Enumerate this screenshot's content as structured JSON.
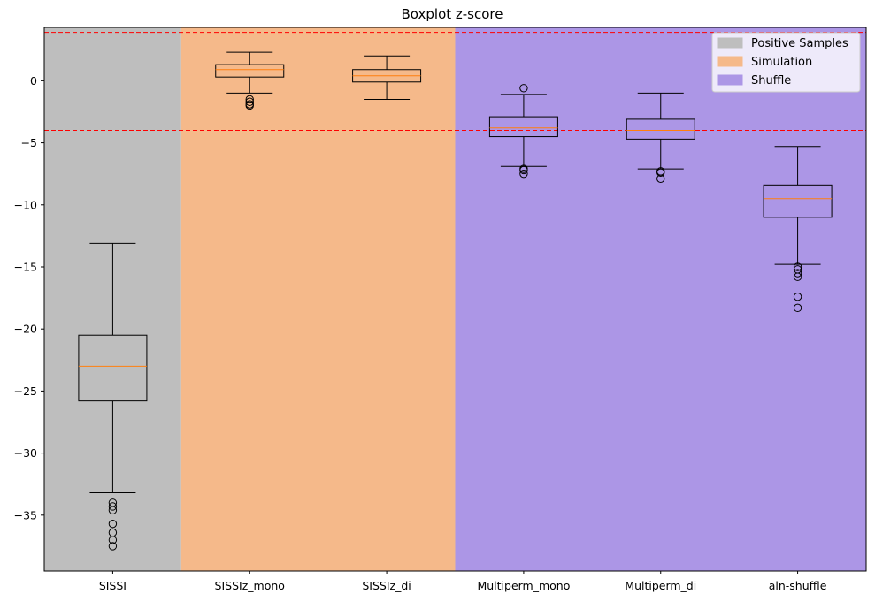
{
  "chart_data": {
    "type": "boxplot",
    "title": "Boxplot z-score",
    "xlabel": "",
    "ylabel": "",
    "ylim": [
      -39.5,
      4.3
    ],
    "yticks": [
      0,
      -5,
      -10,
      -15,
      -20,
      -25,
      -30,
      -35
    ],
    "categories": [
      "SISSI",
      "SISSIz_mono",
      "SISSIz_di",
      "Multiperm_mono",
      "Multiperm_di",
      "aln-shuffle"
    ],
    "reference_lines": [
      3.9,
      -4.0
    ],
    "reference_line_color": "#ff0000",
    "groups": [
      {
        "name": "Positive Samples",
        "start": 0,
        "end": 1,
        "color": "#bebebe"
      },
      {
        "name": "Simulation",
        "start": 1,
        "end": 3,
        "color": "#f5b98a"
      },
      {
        "name": "Shuffle",
        "start": 3,
        "end": 6,
        "color": "#ac96e6"
      }
    ],
    "legend_position": "top-right",
    "median_color": "#ff7f0e",
    "boxes": [
      {
        "label": "SISSI",
        "whisker_low": -33.2,
        "q1": -25.8,
        "median": -23.0,
        "q3": -20.5,
        "whisker_high": -13.1,
        "outliers": [
          -34.0,
          -34.3,
          -34.6,
          -35.7,
          -36.4,
          -37.0,
          -37.5
        ]
      },
      {
        "label": "SISSIz_mono",
        "whisker_low": -1.0,
        "q1": 0.3,
        "median": 0.9,
        "q3": 1.3,
        "whisker_high": 2.3,
        "outliers": [
          -1.5,
          -1.7,
          -1.9,
          -2.0
        ]
      },
      {
        "label": "SISSIz_di",
        "whisker_low": -1.5,
        "q1": -0.1,
        "median": 0.4,
        "q3": 0.9,
        "whisker_high": 2.0,
        "outliers": []
      },
      {
        "label": "Multiperm_mono",
        "whisker_low": -6.9,
        "q1": -4.5,
        "median": -3.8,
        "q3": -2.9,
        "whisker_high": -1.1,
        "outliers": [
          -0.6,
          -7.1,
          -7.2,
          -7.5
        ]
      },
      {
        "label": "Multiperm_di",
        "whisker_low": -7.1,
        "q1": -4.7,
        "median": -4.0,
        "q3": -3.1,
        "whisker_high": -1.0,
        "outliers": [
          -7.3,
          -7.4,
          -7.9
        ]
      },
      {
        "label": "aln-shuffle",
        "whisker_low": -14.8,
        "q1": -11.0,
        "median": -9.5,
        "q3": -8.4,
        "whisker_high": -5.3,
        "outliers": [
          -15.0,
          -15.2,
          -15.5,
          -15.8,
          -17.4,
          -18.3
        ]
      }
    ]
  }
}
